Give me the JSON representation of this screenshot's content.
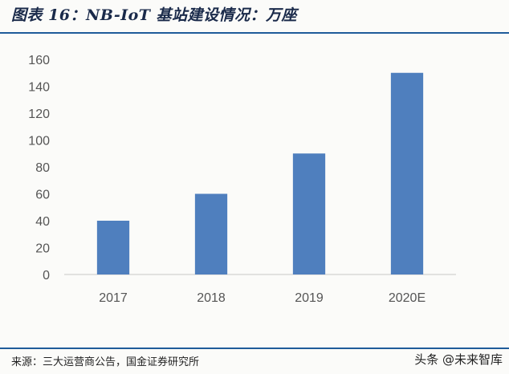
{
  "header": {
    "title": "图表 16：NB-IoT 基站建设情况：万座"
  },
  "footer": {
    "source": "来源：三大运营商公告，国金证券研究所",
    "watermark": "头条 @未来智库"
  },
  "colors": {
    "bar": "#4f7fbe",
    "rule": "#1f5b9a",
    "axis": "#c8c8c8"
  },
  "chart_data": {
    "type": "bar",
    "categories": [
      "2017",
      "2018",
      "2019",
      "2020E"
    ],
    "values": [
      40,
      60,
      90,
      150
    ],
    "ylim": [
      0,
      160
    ],
    "yticks": [
      0,
      20,
      40,
      60,
      80,
      100,
      120,
      140,
      160
    ],
    "grid": false,
    "legend": "none"
  }
}
